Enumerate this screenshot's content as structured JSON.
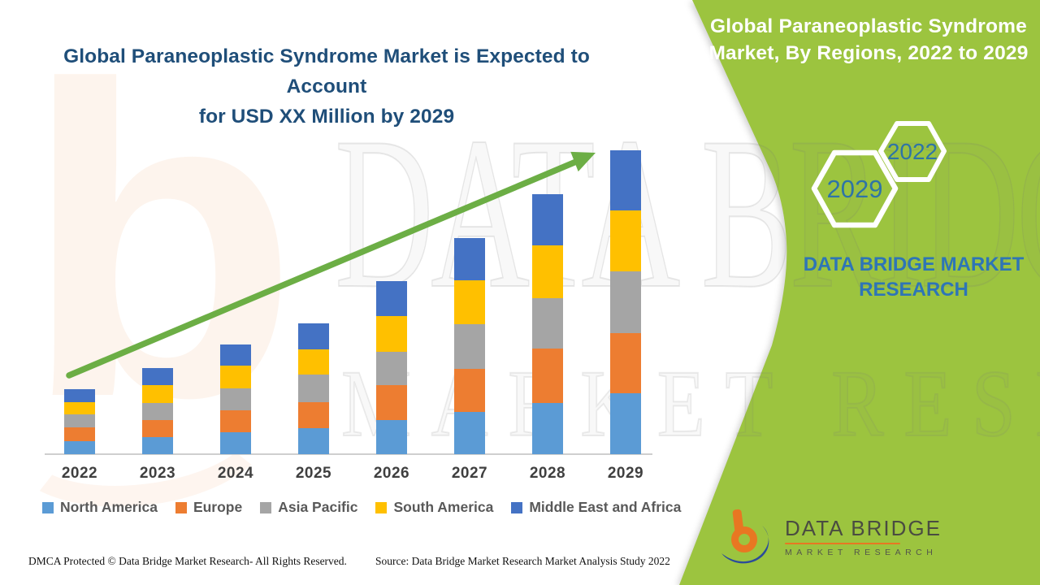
{
  "header": {
    "title_line1": "Global Paraneoplastic Syndrome Market is Expected to Account",
    "title_line2": "for USD XX Million by 2029",
    "title_color": "#1F4E79"
  },
  "side_panel": {
    "color": "#9CC43F",
    "heading": "Global Paraneoplastic Syndrome Market, By Regions, 2022 to 2029",
    "hexagon_year_large": "2029",
    "hexagon_year_small": "2022",
    "hexagon_text_color": "#2E74A6",
    "brand_text": "DATA BRIDGE MARKET RESEARCH",
    "logo_name": "DATA BRIDGE",
    "logo_subtitle": "MARKET RESEARCH"
  },
  "watermarks": {
    "big_letter": "b",
    "line1": "DATA BRIDGE",
    "line2": "MARKET RESEARCH"
  },
  "chart_data": {
    "type": "bar",
    "stacked": true,
    "title": "Global Paraneoplastic Syndrome Market, By Regions, 2022 to 2029",
    "xlabel": "",
    "ylabel": "",
    "value_axis_visible": false,
    "unit": "relative index (actual values undisclosed, shown as USD XX Million)",
    "grid": false,
    "legend_position": "bottom",
    "categories": [
      "2022",
      "2023",
      "2024",
      "2025",
      "2026",
      "2027",
      "2028",
      "2029"
    ],
    "series": [
      {
        "name": "North America",
        "color": "#5B9BD5",
        "values": [
          16,
          21,
          27,
          32,
          42,
          52,
          63,
          75
        ]
      },
      {
        "name": "Europe",
        "color": "#ED7D31",
        "values": [
          17,
          21,
          27,
          32,
          43,
          53,
          67,
          74
        ]
      },
      {
        "name": "Asia Pacific",
        "color": "#A5A5A5",
        "values": [
          16,
          21,
          27,
          34,
          41,
          55,
          62,
          76
        ]
      },
      {
        "name": "South America",
        "color": "#FFC000",
        "values": [
          15,
          22,
          28,
          31,
          44,
          54,
          65,
          75
        ]
      },
      {
        "name": "Middle East and Africa",
        "color": "#4472C4",
        "values": [
          16,
          21,
          26,
          32,
          43,
          52,
          63,
          74
        ]
      }
    ],
    "stack_totals": [
      80,
      106,
      135,
      161,
      213,
      266,
      320,
      374
    ],
    "trend_arrow": {
      "present": true,
      "color": "#6CAE45",
      "direction": "up-right"
    }
  },
  "footer": {
    "dmca": "DMCA Protected © Data Bridge Market Research- All Rights Reserved.",
    "source": "Source: Data Bridge Market Research Market Analysis Study 2022"
  }
}
